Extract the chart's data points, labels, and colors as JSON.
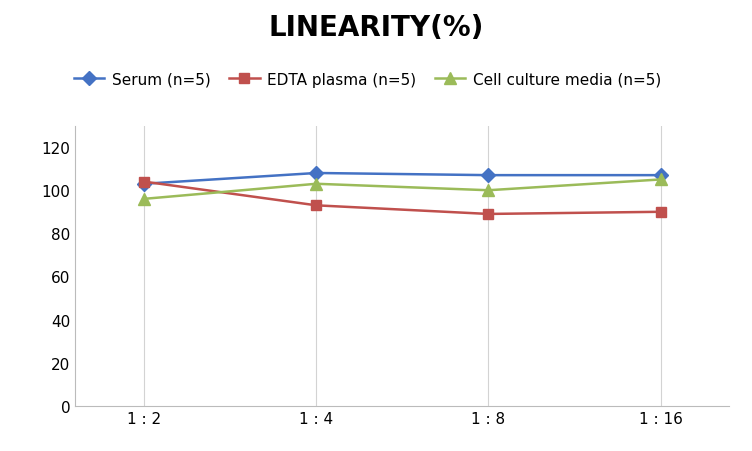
{
  "title": "LINEARITY(%)",
  "x_labels": [
    "1 : 2",
    "1 : 4",
    "1 : 8",
    "1 : 16"
  ],
  "x_positions": [
    0,
    1,
    2,
    3
  ],
  "series": [
    {
      "name": "Serum (n=5)",
      "values": [
        103,
        108,
        107,
        107
      ],
      "color": "#4472C4",
      "marker": "D",
      "marker_size": 7,
      "linewidth": 1.8
    },
    {
      "name": "EDTA plasma (n=5)",
      "values": [
        104,
        93,
        89,
        90
      ],
      "color": "#C0504D",
      "marker": "s",
      "marker_size": 7,
      "linewidth": 1.8
    },
    {
      "name": "Cell culture media (n=5)",
      "values": [
        96,
        103,
        100,
        105
      ],
      "color": "#9BBB59",
      "marker": "^",
      "marker_size": 8,
      "linewidth": 1.8
    }
  ],
  "ylim": [
    0,
    130
  ],
  "yticks": [
    0,
    20,
    40,
    60,
    80,
    100,
    120
  ],
  "title_fontsize": 20,
  "legend_fontsize": 11,
  "tick_fontsize": 11,
  "background_color": "#ffffff",
  "grid_color": "#d3d3d3",
  "title_fontweight": "bold",
  "spine_color": "#bbbbbb"
}
